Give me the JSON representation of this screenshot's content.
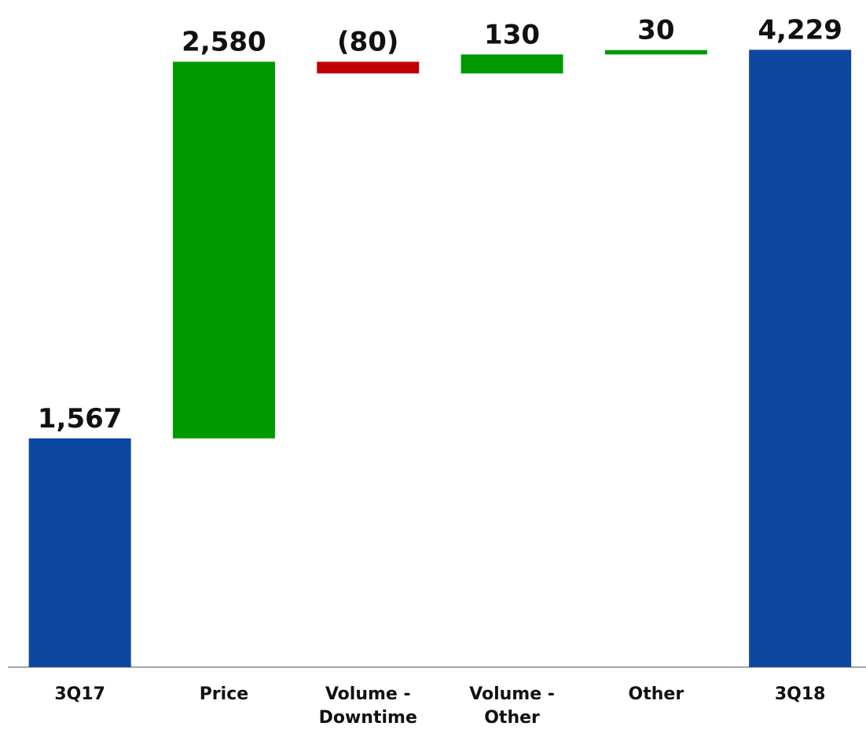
{
  "chart_data": {
    "type": "waterfall",
    "categories": [
      "3Q17",
      "Price",
      "Volume - Downtime",
      "Volume - Other",
      "Other",
      "3Q18"
    ],
    "values": [
      1567,
      2580,
      -80,
      130,
      30,
      4229
    ],
    "value_labels": [
      "1,567",
      "2,580",
      "(80)",
      "130",
      "30",
      "4,229"
    ],
    "measure": [
      "absolute",
      "relative",
      "relative",
      "relative",
      "relative",
      "total"
    ],
    "colors": {
      "total": "#0d47a1",
      "increase": "#009900",
      "decrease": "#c00000"
    },
    "ylim": [
      0,
      4570
    ]
  }
}
